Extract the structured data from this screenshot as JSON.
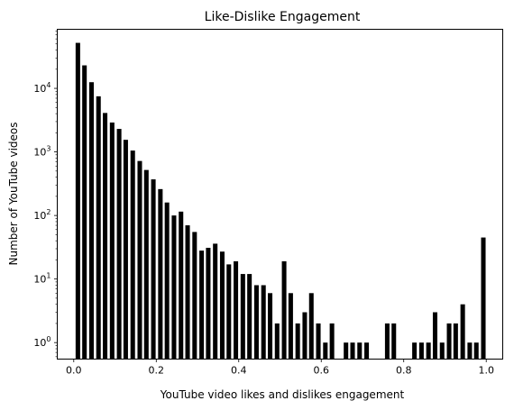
{
  "chart_data": {
    "type": "bar",
    "title": "Like-Dislike Engagement",
    "xlabel": "YouTube video likes and dislikes engagement",
    "ylabel": "Number of YouTube videos",
    "xlim": [
      -0.04,
      1.04
    ],
    "ylim": [
      0.55,
      85000
    ],
    "yscale": "log",
    "bar_width": 0.011,
    "bar_color": "#000000",
    "x_ticks": [
      {
        "value": 0.0,
        "label": "0.0"
      },
      {
        "value": 0.2,
        "label": "0.2"
      },
      {
        "value": 0.4,
        "label": "0.4"
      },
      {
        "value": 0.6,
        "label": "0.6"
      },
      {
        "value": 0.8,
        "label": "0.8"
      },
      {
        "value": 1.0,
        "label": "1.0"
      }
    ],
    "y_ticks": [
      {
        "value": 1,
        "base": "10",
        "exp": "0"
      },
      {
        "value": 10,
        "base": "10",
        "exp": "1"
      },
      {
        "value": 100,
        "base": "10",
        "exp": "2"
      },
      {
        "value": 1000,
        "base": "10",
        "exp": "3"
      },
      {
        "value": 10000,
        "base": "10",
        "exp": "4"
      }
    ],
    "x": [
      0.01,
      0.026,
      0.043,
      0.06,
      0.076,
      0.093,
      0.11,
      0.126,
      0.143,
      0.16,
      0.176,
      0.193,
      0.21,
      0.226,
      0.243,
      0.26,
      0.276,
      0.293,
      0.31,
      0.326,
      0.343,
      0.36,
      0.376,
      0.393,
      0.41,
      0.426,
      0.443,
      0.46,
      0.476,
      0.493,
      0.51,
      0.526,
      0.543,
      0.56,
      0.576,
      0.593,
      0.61,
      0.626,
      0.66,
      0.676,
      0.693,
      0.71,
      0.76,
      0.776,
      0.826,
      0.843,
      0.86,
      0.876,
      0.893,
      0.91,
      0.926,
      0.943,
      0.96,
      0.976,
      0.993
    ],
    "values": [
      52000,
      23000,
      12500,
      7500,
      4100,
      2900,
      2300,
      1550,
      1050,
      720,
      520,
      370,
      260,
      160,
      100,
      115,
      70,
      55,
      28,
      31,
      36,
      27,
      17,
      19,
      12,
      12,
      8,
      8,
      6,
      2,
      19,
      6,
      2,
      3,
      6,
      2,
      1,
      2,
      1,
      1,
      1,
      1,
      2,
      2,
      1,
      1,
      1,
      3,
      1,
      2,
      2,
      4,
      1,
      1,
      45
    ]
  }
}
